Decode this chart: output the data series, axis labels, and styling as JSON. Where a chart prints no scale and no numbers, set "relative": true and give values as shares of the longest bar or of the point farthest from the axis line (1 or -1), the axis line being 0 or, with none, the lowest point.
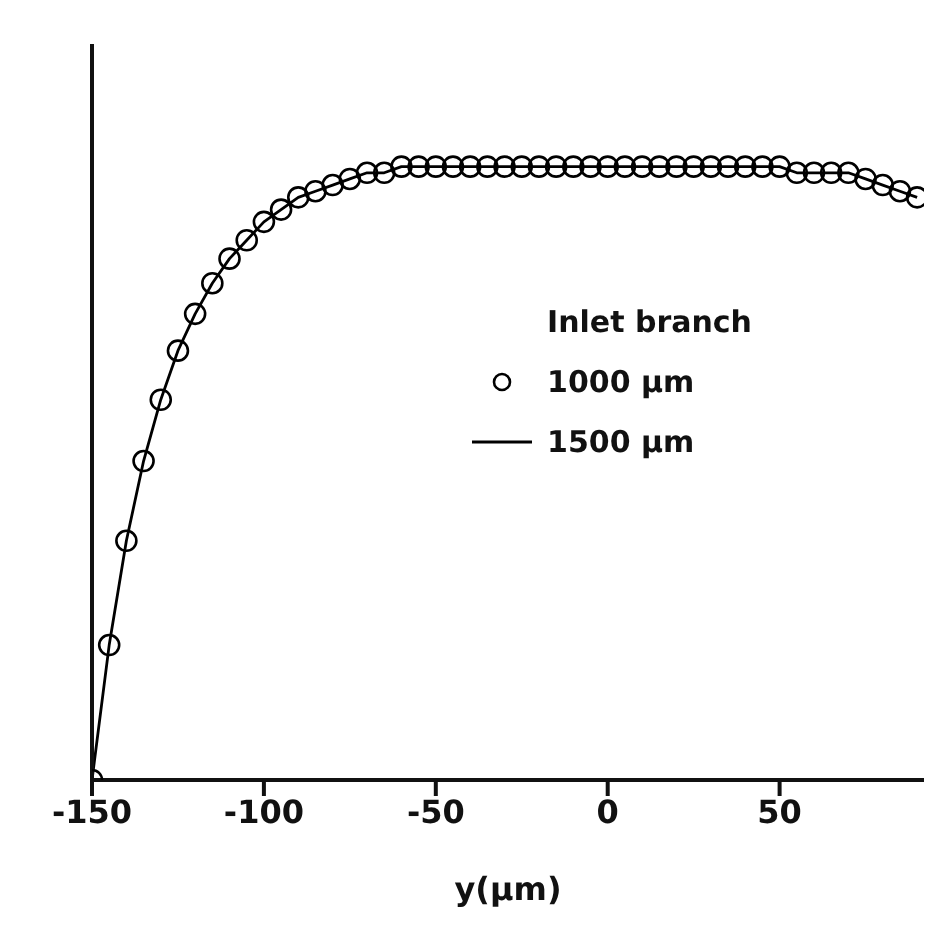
{
  "chart_data": {
    "type": "line",
    "xlabel": "y(μm)",
    "relative": true,
    "legend": "right",
    "legend_title": "Inlet branch",
    "grid": false,
    "xlim": [
      -150,
      92
    ],
    "xticks": [
      -150,
      -100,
      -50,
      0,
      50
    ],
    "series": [
      {
        "name": "1000 μm",
        "type": "scatter",
        "marker": "circle",
        "color": "#000000",
        "x": [
          -150,
          -145,
          -140,
          -135,
          -130,
          -125,
          -120,
          -115,
          -110,
          -105,
          -100,
          -95,
          -90,
          -85,
          -80,
          -75,
          -70,
          -65,
          -60,
          -55,
          -50,
          -45,
          -40,
          -35,
          -30,
          -25,
          -20,
          -15,
          -10,
          -5,
          0,
          5,
          10,
          15,
          20,
          25,
          30,
          35,
          40,
          45,
          50,
          55,
          60,
          65,
          70,
          75,
          80,
          85,
          90
        ],
        "values": [
          0,
          0.22,
          0.39,
          0.52,
          0.62,
          0.7,
          0.76,
          0.81,
          0.85,
          0.88,
          0.91,
          0.93,
          0.95,
          0.96,
          0.97,
          0.98,
          0.99,
          0.99,
          1,
          1,
          1,
          1,
          1,
          1,
          1,
          1,
          1,
          1,
          1,
          1,
          1,
          1,
          1,
          1,
          1,
          1,
          1,
          1,
          1,
          1,
          1,
          0.99,
          0.99,
          0.99,
          0.99,
          0.98,
          0.97,
          0.96,
          0.95
        ]
      },
      {
        "name": "1500 μm",
        "marker": "none",
        "line_style": "solid",
        "color": "#000000",
        "x": [
          -150,
          -145,
          -140,
          -135,
          -130,
          -125,
          -120,
          -115,
          -110,
          -105,
          -100,
          -95,
          -90,
          -85,
          -80,
          -75,
          -70,
          -65,
          -60,
          -55,
          -50,
          -45,
          -40,
          -35,
          -30,
          -25,
          -20,
          -15,
          -10,
          -5,
          0,
          5,
          10,
          15,
          20,
          25,
          30,
          35,
          40,
          45,
          50,
          55,
          60,
          65,
          70,
          75,
          80,
          85,
          90
        ],
        "values": [
          0,
          0.22,
          0.39,
          0.52,
          0.62,
          0.7,
          0.76,
          0.81,
          0.85,
          0.88,
          0.91,
          0.93,
          0.95,
          0.96,
          0.97,
          0.98,
          0.99,
          0.99,
          1,
          1,
          1,
          1,
          1,
          1,
          1,
          1,
          1,
          1,
          1,
          1,
          1,
          1,
          1,
          1,
          1,
          1,
          1,
          1,
          1,
          1,
          1,
          0.99,
          0.99,
          0.99,
          0.99,
          0.98,
          0.97,
          0.96,
          0.95
        ]
      }
    ]
  }
}
